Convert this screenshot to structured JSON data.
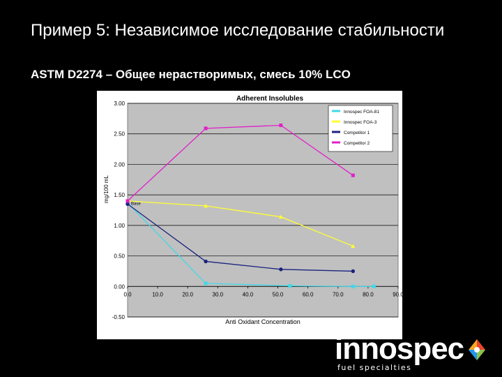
{
  "slide": {
    "title": "Пример 5: Независимое исследование стабильности",
    "subtitle": "ASTM D2274 – Общее нерастворимых, смесь 10% LCO"
  },
  "chart_data": {
    "type": "line",
    "title": "Adherent Insolubles",
    "xlabel": "Anti Oxidant Concentration",
    "ylabel": "mg/100 mL",
    "xlim": [
      0,
      90
    ],
    "ylim": [
      -0.5,
      3.0
    ],
    "x_ticks": [
      "0.0",
      "10.0",
      "20.0",
      "30.0",
      "40.0",
      "50.0",
      "60.0",
      "70.0",
      "80.0",
      "90.0"
    ],
    "y_ticks": [
      "3.00",
      "2.50",
      "2.00",
      "1.50",
      "1.00",
      "0.50",
      "0.00",
      "-0.50"
    ],
    "grid": true,
    "legend_position": "top-right",
    "annotation": "Base",
    "series": [
      {
        "name": "Innospec FOA-81",
        "color": "#40d8e8",
        "marker": "square",
        "x": [
          0,
          26,
          54,
          75,
          82
        ],
        "y": [
          1.37,
          0.05,
          0.01,
          0.0,
          0.0
        ]
      },
      {
        "name": "Innospec FOA-3",
        "color": "#ffff33",
        "marker": "triangle",
        "x": [
          0,
          26,
          51,
          75
        ],
        "y": [
          1.4,
          1.32,
          1.14,
          0.66
        ]
      },
      {
        "name": "Competitor 1",
        "color": "#1a237e",
        "marker": "circle",
        "x": [
          0,
          26,
          51,
          75
        ],
        "y": [
          1.35,
          0.41,
          0.28,
          0.25
        ]
      },
      {
        "name": "Competitor 2",
        "color": "#e020c8",
        "marker": "square",
        "x": [
          0,
          26,
          51,
          75
        ],
        "y": [
          1.4,
          2.59,
          2.64,
          1.82
        ]
      }
    ]
  },
  "logo": {
    "wordmark": "innospec",
    "tagline": "fuel specialties"
  }
}
